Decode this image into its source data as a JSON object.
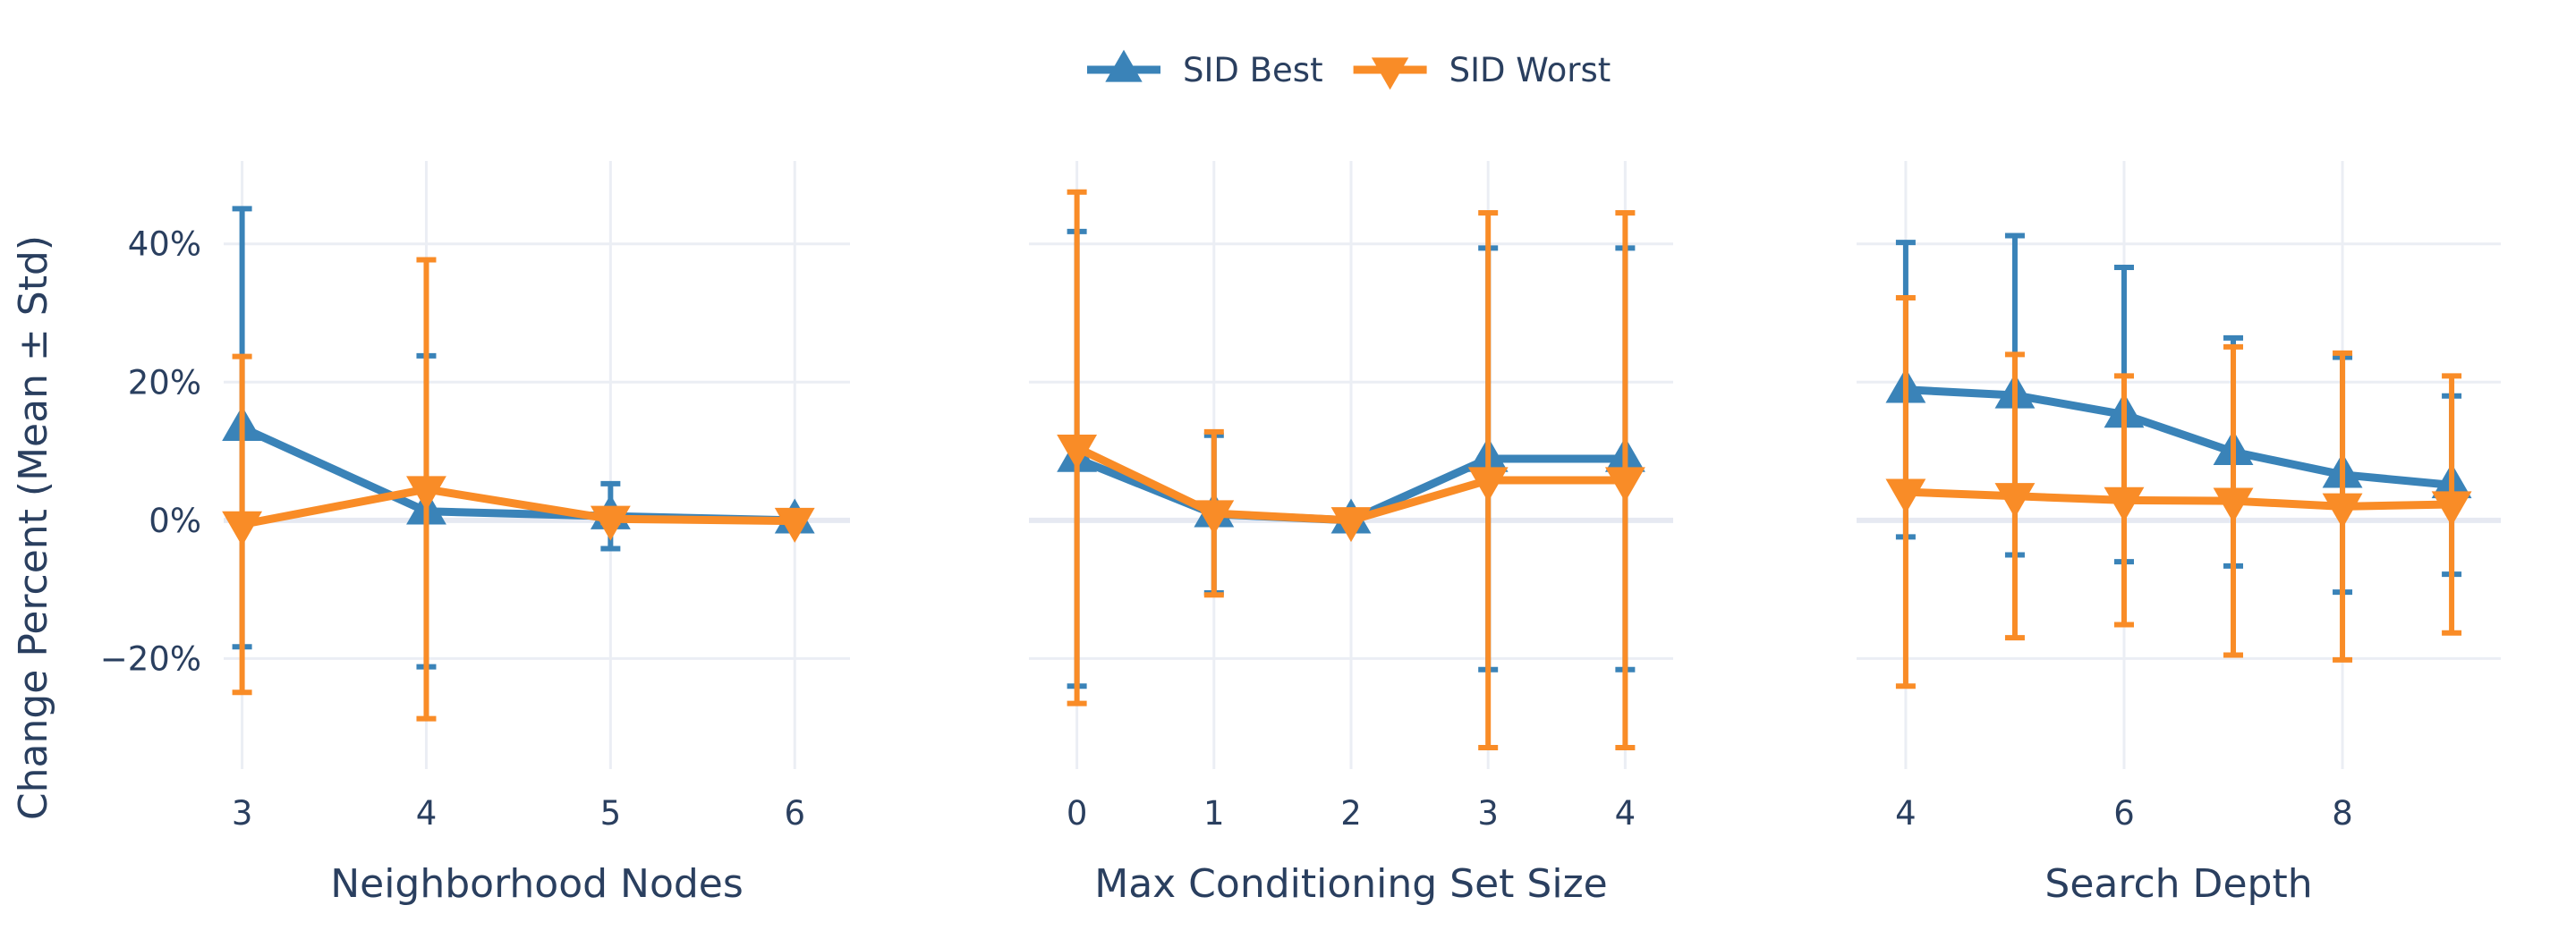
{
  "chart_data": {
    "type": "line",
    "ylabel": "Change Percent (Mean ± Std)",
    "y_ticks": [
      -20,
      0,
      20,
      40
    ],
    "y_tick_labels": [
      "−20%",
      "0%",
      "20%",
      "40%"
    ],
    "ylim": [
      -36,
      52
    ],
    "grid": true,
    "legend_placement": "top-center",
    "colors": {
      "SID Best": "#3a83b8",
      "SID Worst": "#f98c27"
    },
    "legend": [
      {
        "name": "SID Best",
        "marker": "triangle-up"
      },
      {
        "name": "SID Worst",
        "marker": "triangle-down"
      }
    ],
    "panels": [
      {
        "xlabel": "Neighborhood Nodes",
        "xlim": [
          2.9,
          6.3
        ],
        "x_ticks": [
          3,
          4,
          5,
          6
        ],
        "x_tick_labels": [
          "3",
          "4",
          "5",
          "6"
        ],
        "series": [
          {
            "name": "SID Best",
            "x": [
              3,
              4,
              5,
              6
            ],
            "y": [
              13.4,
              1.3,
              0.6,
              0.0
            ],
            "err": [
              31.7,
              22.5,
              4.7,
              0.2
            ]
          },
          {
            "name": "SID Worst",
            "x": [
              3,
              4,
              5,
              6
            ],
            "y": [
              -0.6,
              4.5,
              0.2,
              -0.1
            ],
            "err": [
              24.3,
              33.2,
              0.5,
              0.2
            ]
          }
        ]
      },
      {
        "xlabel": "Max Conditioning Set Size",
        "xlim": [
          -0.35,
          4.35
        ],
        "x_ticks": [
          0,
          1,
          2,
          3,
          4
        ],
        "x_tick_labels": [
          "0",
          "1",
          "2",
          "3",
          "4"
        ],
        "series": [
          {
            "name": "SID Best",
            "x": [
              0,
              1,
              2,
              3,
              4
            ],
            "y": [
              8.9,
              0.9,
              0.0,
              8.9,
              8.9
            ],
            "err": [
              32.9,
              11.4,
              0.2,
              30.5,
              30.5
            ]
          },
          {
            "name": "SID Worst",
            "x": [
              0,
              1,
              2,
              3,
              4
            ],
            "y": [
              10.5,
              1.0,
              0.0,
              5.8,
              5.8
            ],
            "err": [
              37.0,
              11.8,
              0.2,
              38.7,
              38.7
            ]
          }
        ]
      },
      {
        "xlabel": "Search Depth",
        "xlim": [
          3.55,
          9.45
        ],
        "x_ticks": [
          4,
          6,
          8
        ],
        "x_tick_labels": [
          "4",
          "6",
          "8"
        ],
        "series": [
          {
            "name": "SID Best",
            "x": [
              4,
              5,
              6,
              7,
              8,
              9
            ],
            "y": [
              18.9,
              18.1,
              15.3,
              9.9,
              6.6,
              5.1
            ],
            "err": [
              21.3,
              23.1,
              21.3,
              16.5,
              17.0,
              12.9
            ]
          },
          {
            "name": "SID Worst",
            "x": [
              4,
              5,
              6,
              7,
              8,
              9
            ],
            "y": [
              4.1,
              3.5,
              2.9,
              2.8,
              2.0,
              2.3
            ],
            "err": [
              28.1,
              20.5,
              18.0,
              22.3,
              22.2,
              18.6
            ]
          }
        ]
      }
    ]
  }
}
